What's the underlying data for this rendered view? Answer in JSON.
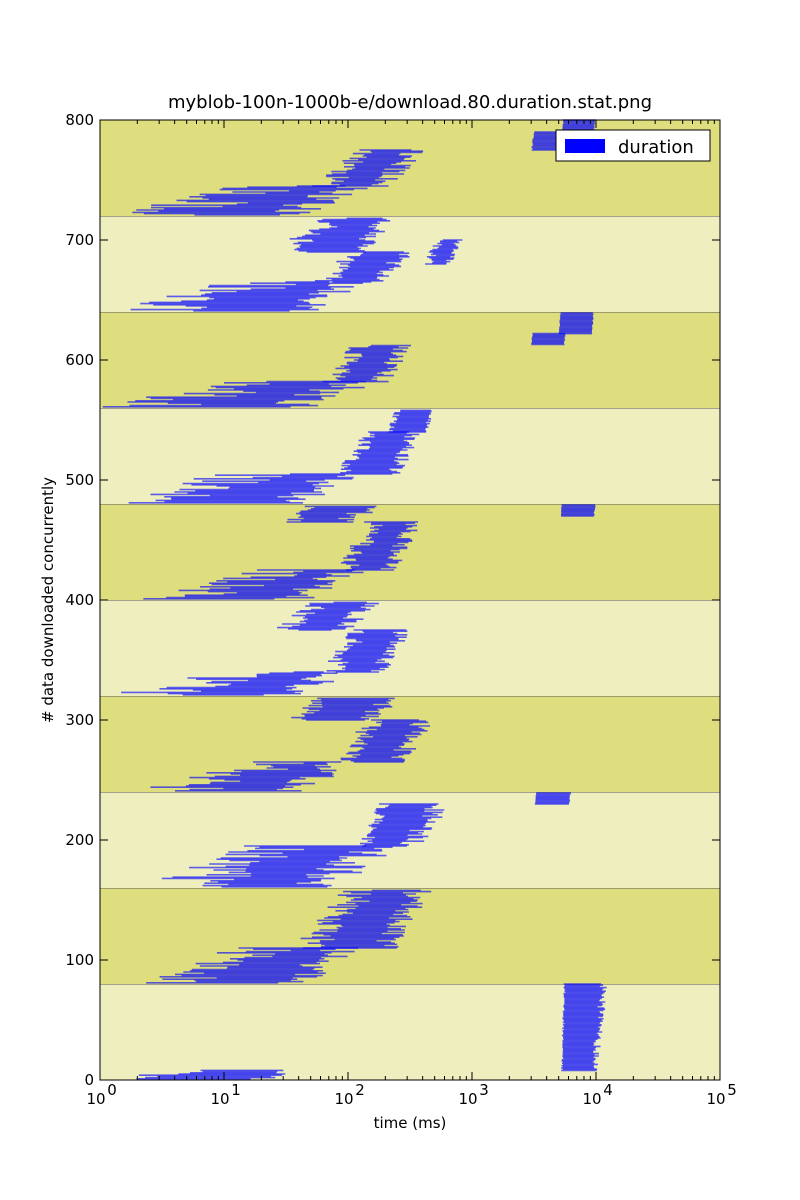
{
  "chart_data": {
    "type": "bar",
    "orientation": "horizontal-interval",
    "title": "myblob-100n-1000b-e/download.80.duration.stat.png",
    "xlabel": "time (ms)",
    "ylabel": "# data downloaded concurrently",
    "xscale": "log",
    "xlim": [
      1,
      100000
    ],
    "ylim": [
      0,
      800
    ],
    "x_ticks": [
      {
        "base": "10",
        "exp": "0"
      },
      {
        "base": "10",
        "exp": "1"
      },
      {
        "base": "10",
        "exp": "2"
      },
      {
        "base": "10",
        "exp": "3"
      },
      {
        "base": "10",
        "exp": "4"
      },
      {
        "base": "10",
        "exp": "5"
      }
    ],
    "y_ticks": [
      "0",
      "100",
      "200",
      "300",
      "400",
      "500",
      "600",
      "700",
      "800"
    ],
    "y_tick_values": [
      0,
      100,
      200,
      300,
      400,
      500,
      600,
      700,
      800
    ],
    "legend": {
      "label": "duration",
      "color": "#0000ff",
      "placement": "top-right"
    },
    "series_color": "#0000ff",
    "band_colors": [
      "#eeeebf",
      "#dede7e"
    ],
    "bands": [
      {
        "y0": 0,
        "y1": 80
      },
      {
        "y0": 80,
        "y1": 160
      },
      {
        "y0": 160,
        "y1": 240
      },
      {
        "y0": 240,
        "y1": 320
      },
      {
        "y0": 320,
        "y1": 400
      },
      {
        "y0": 400,
        "y1": 480
      },
      {
        "y0": 480,
        "y1": 560
      },
      {
        "y0": 560,
        "y1": 640
      },
      {
        "y0": 640,
        "y1": 720
      },
      {
        "y0": 720,
        "y1": 800
      }
    ],
    "clusters": [
      {
        "y0": 1,
        "y1": 8,
        "start_lo": 1,
        "start_hi": 10,
        "end_lo": 14,
        "end_hi": 45
      },
      {
        "y0": 8,
        "y1": 80,
        "start_lo": 5200,
        "start_hi": 5700,
        "end_lo": 9000,
        "end_hi": 12500
      },
      {
        "y0": 81,
        "y1": 110,
        "start_lo": 2,
        "start_hi": 40,
        "end_lo": 25,
        "end_hi": 130
      },
      {
        "y0": 110,
        "y1": 158,
        "start_lo": 35,
        "start_hi": 180,
        "end_lo": 150,
        "end_hi": 480
      },
      {
        "y0": 161,
        "y1": 195,
        "start_lo": 2,
        "start_hi": 70,
        "end_lo": 30,
        "end_hi": 300
      },
      {
        "y0": 195,
        "y1": 230,
        "start_lo": 120,
        "start_hi": 220,
        "end_lo": 250,
        "end_hi": 700
      },
      {
        "y0": 230,
        "y1": 239,
        "start_lo": 3200,
        "start_hi": 3300,
        "end_lo": 6000,
        "end_hi": 6300
      },
      {
        "y0": 241,
        "y1": 265,
        "start_lo": 2,
        "start_hi": 60,
        "end_lo": 25,
        "end_hi": 120
      },
      {
        "y0": 265,
        "y1": 300,
        "start_lo": 80,
        "start_hi": 200,
        "end_lo": 200,
        "end_hi": 500
      },
      {
        "y0": 300,
        "y1": 318,
        "start_lo": 30,
        "start_hi": 80,
        "end_lo": 100,
        "end_hi": 300
      },
      {
        "y0": 321,
        "y1": 340,
        "start_lo": 1,
        "start_hi": 40,
        "end_lo": 20,
        "end_hi": 120
      },
      {
        "y0": 340,
        "y1": 375,
        "start_lo": 60,
        "start_hi": 160,
        "end_lo": 150,
        "end_hi": 330
      },
      {
        "y0": 375,
        "y1": 398,
        "start_lo": 25,
        "start_hi": 80,
        "end_lo": 70,
        "end_hi": 200
      },
      {
        "y0": 401,
        "y1": 425,
        "start_lo": 2,
        "start_hi": 60,
        "end_lo": 25,
        "end_hi": 150
      },
      {
        "y0": 425,
        "y1": 465,
        "start_lo": 80,
        "start_hi": 200,
        "end_lo": 180,
        "end_hi": 400
      },
      {
        "y0": 465,
        "y1": 478,
        "start_lo": 30,
        "start_hi": 60,
        "end_lo": 70,
        "end_hi": 200
      },
      {
        "y0": 470,
        "y1": 479,
        "start_lo": 5200,
        "start_hi": 5300,
        "end_lo": 9500,
        "end_hi": 10000
      },
      {
        "y0": 481,
        "y1": 505,
        "start_lo": 1,
        "start_hi": 40,
        "end_lo": 20,
        "end_hi": 150
      },
      {
        "y0": 505,
        "y1": 540,
        "start_lo": 80,
        "start_hi": 180,
        "end_lo": 200,
        "end_hi": 400
      },
      {
        "y0": 540,
        "y1": 558,
        "start_lo": 200,
        "start_hi": 270,
        "end_lo": 400,
        "end_hi": 500
      },
      {
        "y0": 561,
        "y1": 582,
        "start_lo": 1,
        "start_hi": 50,
        "end_lo": 20,
        "end_hi": 200
      },
      {
        "y0": 582,
        "y1": 612,
        "start_lo": 60,
        "start_hi": 160,
        "end_lo": 150,
        "end_hi": 350
      },
      {
        "y0": 613,
        "y1": 622,
        "start_lo": 3000,
        "start_hi": 3100,
        "end_lo": 5500,
        "end_hi": 5700
      },
      {
        "y0": 622,
        "y1": 639,
        "start_lo": 5000,
        "start_hi": 5200,
        "end_lo": 9200,
        "end_hi": 9600
      },
      {
        "y0": 641,
        "y1": 665,
        "start_lo": 1,
        "start_hi": 50,
        "end_lo": 25,
        "end_hi": 150
      },
      {
        "y0": 665,
        "y1": 690,
        "start_lo": 50,
        "start_hi": 150,
        "end_lo": 150,
        "end_hi": 350
      },
      {
        "y0": 680,
        "y1": 700,
        "start_lo": 400,
        "start_hi": 600,
        "end_lo": 600,
        "end_hi": 850
      },
      {
        "y0": 690,
        "y1": 718,
        "start_lo": 25,
        "start_hi": 100,
        "end_lo": 100,
        "end_hi": 250
      },
      {
        "y0": 721,
        "y1": 745,
        "start_lo": 1,
        "start_hi": 60,
        "end_lo": 20,
        "end_hi": 180
      },
      {
        "y0": 745,
        "y1": 775,
        "start_lo": 50,
        "start_hi": 180,
        "end_lo": 150,
        "end_hi": 420
      },
      {
        "y0": 775,
        "y1": 790,
        "start_lo": 3000,
        "start_hi": 3200,
        "end_lo": 5000,
        "end_hi": 5500
      },
      {
        "y0": 790,
        "y1": 800,
        "start_lo": 5300,
        "start_hi": 5500,
        "end_lo": 9500,
        "end_hi": 10000
      }
    ]
  }
}
